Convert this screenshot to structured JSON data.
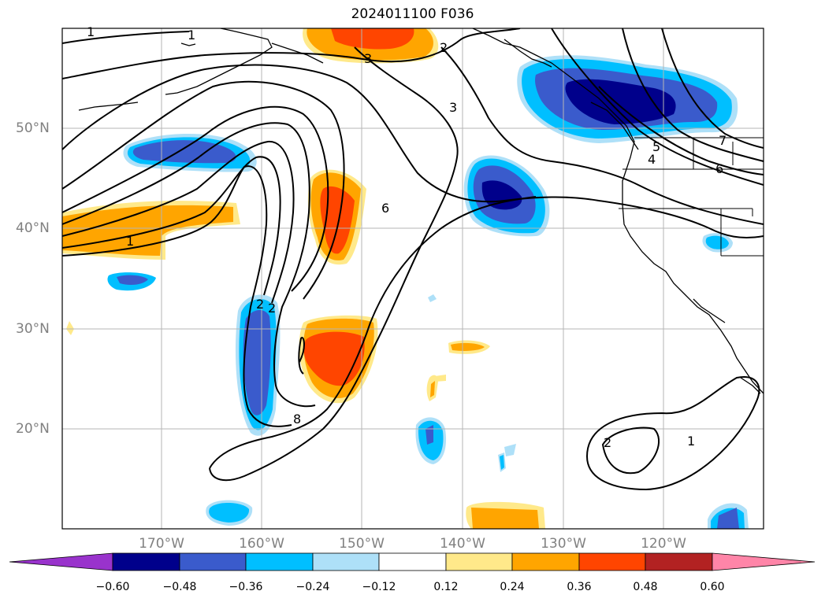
{
  "title": "2024011100 F036",
  "lat_labels": [
    "50°N",
    "40°N",
    "30°N",
    "20°N"
  ],
  "lon_labels": [
    "170°W",
    "160°W",
    "150°W",
    "140°W",
    "130°W",
    "120°W"
  ],
  "colorbar": {
    "ticks": [
      "−0.60",
      "−0.48",
      "−0.36",
      "−0.24",
      "−0.12",
      "0.12",
      "0.24",
      "0.36",
      "0.48",
      "0.60"
    ],
    "colors": [
      "#9933cc",
      "#00008b",
      "#3a5bcc",
      "#00bfff",
      "#aee0f8",
      "#ffffff",
      "#ffe98a",
      "#ffa500",
      "#ff4500",
      "#b22222",
      "#ff85a8"
    ]
  },
  "contour_labels": [
    "1",
    "1",
    "1",
    "2",
    "2",
    "3",
    "3",
    "4",
    "5",
    "6",
    "6",
    "7",
    "1",
    "2",
    "2",
    "8"
  ]
}
